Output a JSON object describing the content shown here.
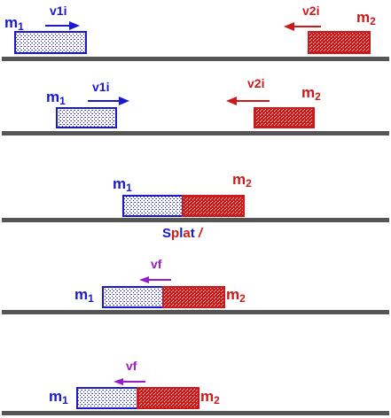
{
  "colors": {
    "blue": "#1a1acc",
    "red": "#cc1a1a",
    "purple": "#9a1acc",
    "track": "#555555"
  },
  "labels": {
    "m1": "m",
    "m1_sub": "1",
    "m2": "m",
    "m2_sub": "2",
    "v1i": "v1i",
    "v2i": "v2i",
    "vf": "vf",
    "splat_s": "S",
    "splat_p": "p",
    "splat_l": "l",
    "splat_a": "a",
    "splat_t": "t",
    "splat_bang": " /"
  },
  "panels": [
    {
      "id": "approach-far",
      "icons": [
        "right-arrow-icon",
        "left-arrow-icon"
      ]
    },
    {
      "id": "approach-near",
      "icons": [
        "right-arrow-icon",
        "left-arrow-icon"
      ]
    },
    {
      "id": "collision"
    },
    {
      "id": "combined-moving-1",
      "icons": [
        "left-arrow-icon"
      ]
    },
    {
      "id": "combined-moving-2",
      "icons": [
        "left-arrow-icon"
      ]
    }
  ]
}
